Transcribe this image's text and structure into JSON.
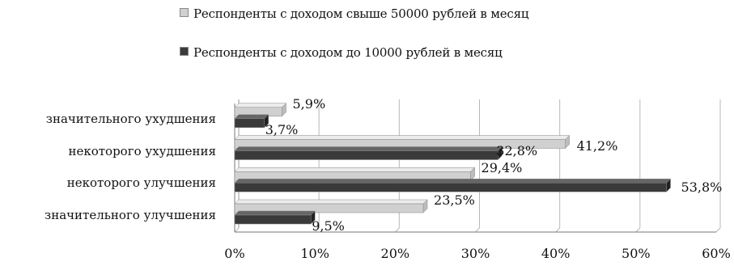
{
  "chart_data": {
    "type": "bar",
    "orientation": "horizontal",
    "categories": [
      "значительного ухудшения",
      "некоторого ухудшения",
      "некоторого улучшения",
      "значительного улучшения"
    ],
    "series": [
      {
        "name": "Респонденты с доходом свыше 50000 рублей в месяц",
        "values": [
          5.9,
          41.2,
          29.4,
          23.5
        ],
        "value_labels": [
          "5,9%",
          "41,2%",
          "29,4%",
          "23,5%"
        ],
        "color": "#d0d0d0"
      },
      {
        "name": "Респонденты с доходом до 10000 рублей в месяц",
        "values": [
          3.7,
          32.8,
          53.8,
          9.5
        ],
        "value_labels": [
          "3,7%",
          "32,8%",
          "53,8%",
          "9,5%"
        ],
        "color": "#3a3a3a"
      }
    ],
    "x_ticks": [
      "0%",
      "10%",
      "20%",
      "30%",
      "40%",
      "50%",
      "60%"
    ],
    "xlim": [
      0,
      60
    ],
    "grid": true,
    "legend_position": "top"
  }
}
